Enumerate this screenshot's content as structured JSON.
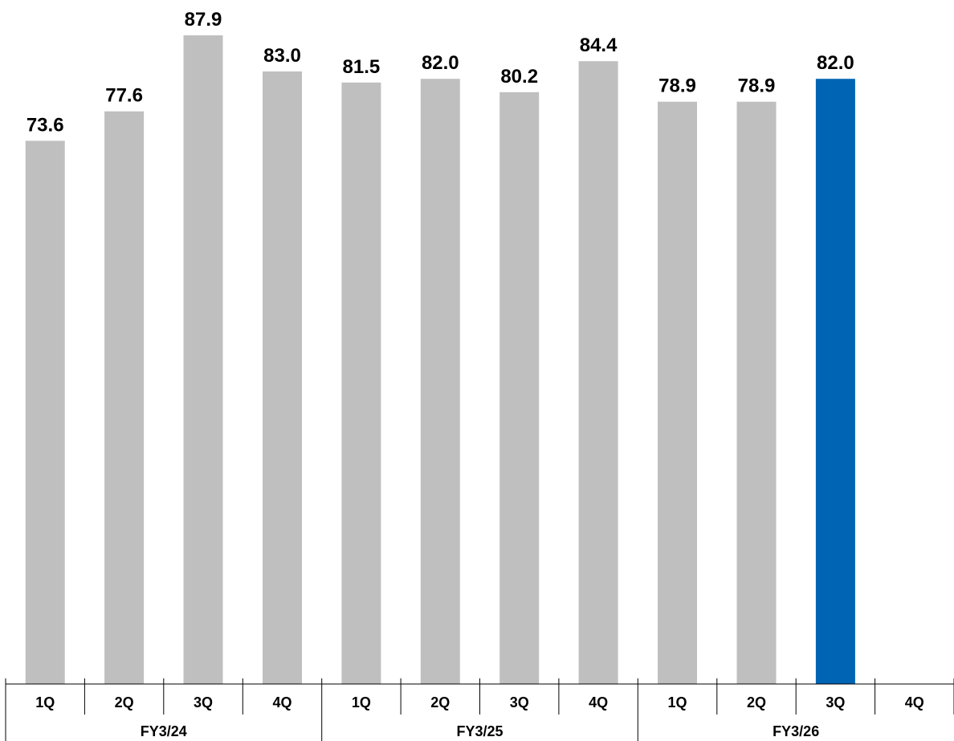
{
  "chart_data": {
    "type": "bar",
    "title": "",
    "xlabel": "",
    "ylabel": "",
    "ylim": [
      0,
      90
    ],
    "grid": false,
    "legend": "none",
    "categories": [
      "1Q",
      "2Q",
      "3Q",
      "4Q",
      "1Q",
      "2Q",
      "3Q",
      "4Q",
      "1Q",
      "2Q",
      "3Q",
      "4Q"
    ],
    "groups": [
      {
        "label": "FY3/24",
        "span": 4
      },
      {
        "label": "FY3/25",
        "span": 4
      },
      {
        "label": "FY3/26",
        "span": 4
      }
    ],
    "values": [
      73.6,
      77.6,
      87.9,
      83.0,
      81.5,
      82.0,
      80.2,
      84.4,
      78.9,
      78.9,
      82.0,
      null
    ],
    "data_labels": [
      "73.6",
      "77.6",
      "87.9",
      "83.0",
      "81.5",
      "82.0",
      "80.2",
      "84.4",
      "78.9",
      "78.9",
      "82.0",
      ""
    ],
    "highlight_index": 10,
    "colors": {
      "default": "#bfbfbf",
      "highlight": "#0064b4",
      "axis": "#000000"
    }
  }
}
